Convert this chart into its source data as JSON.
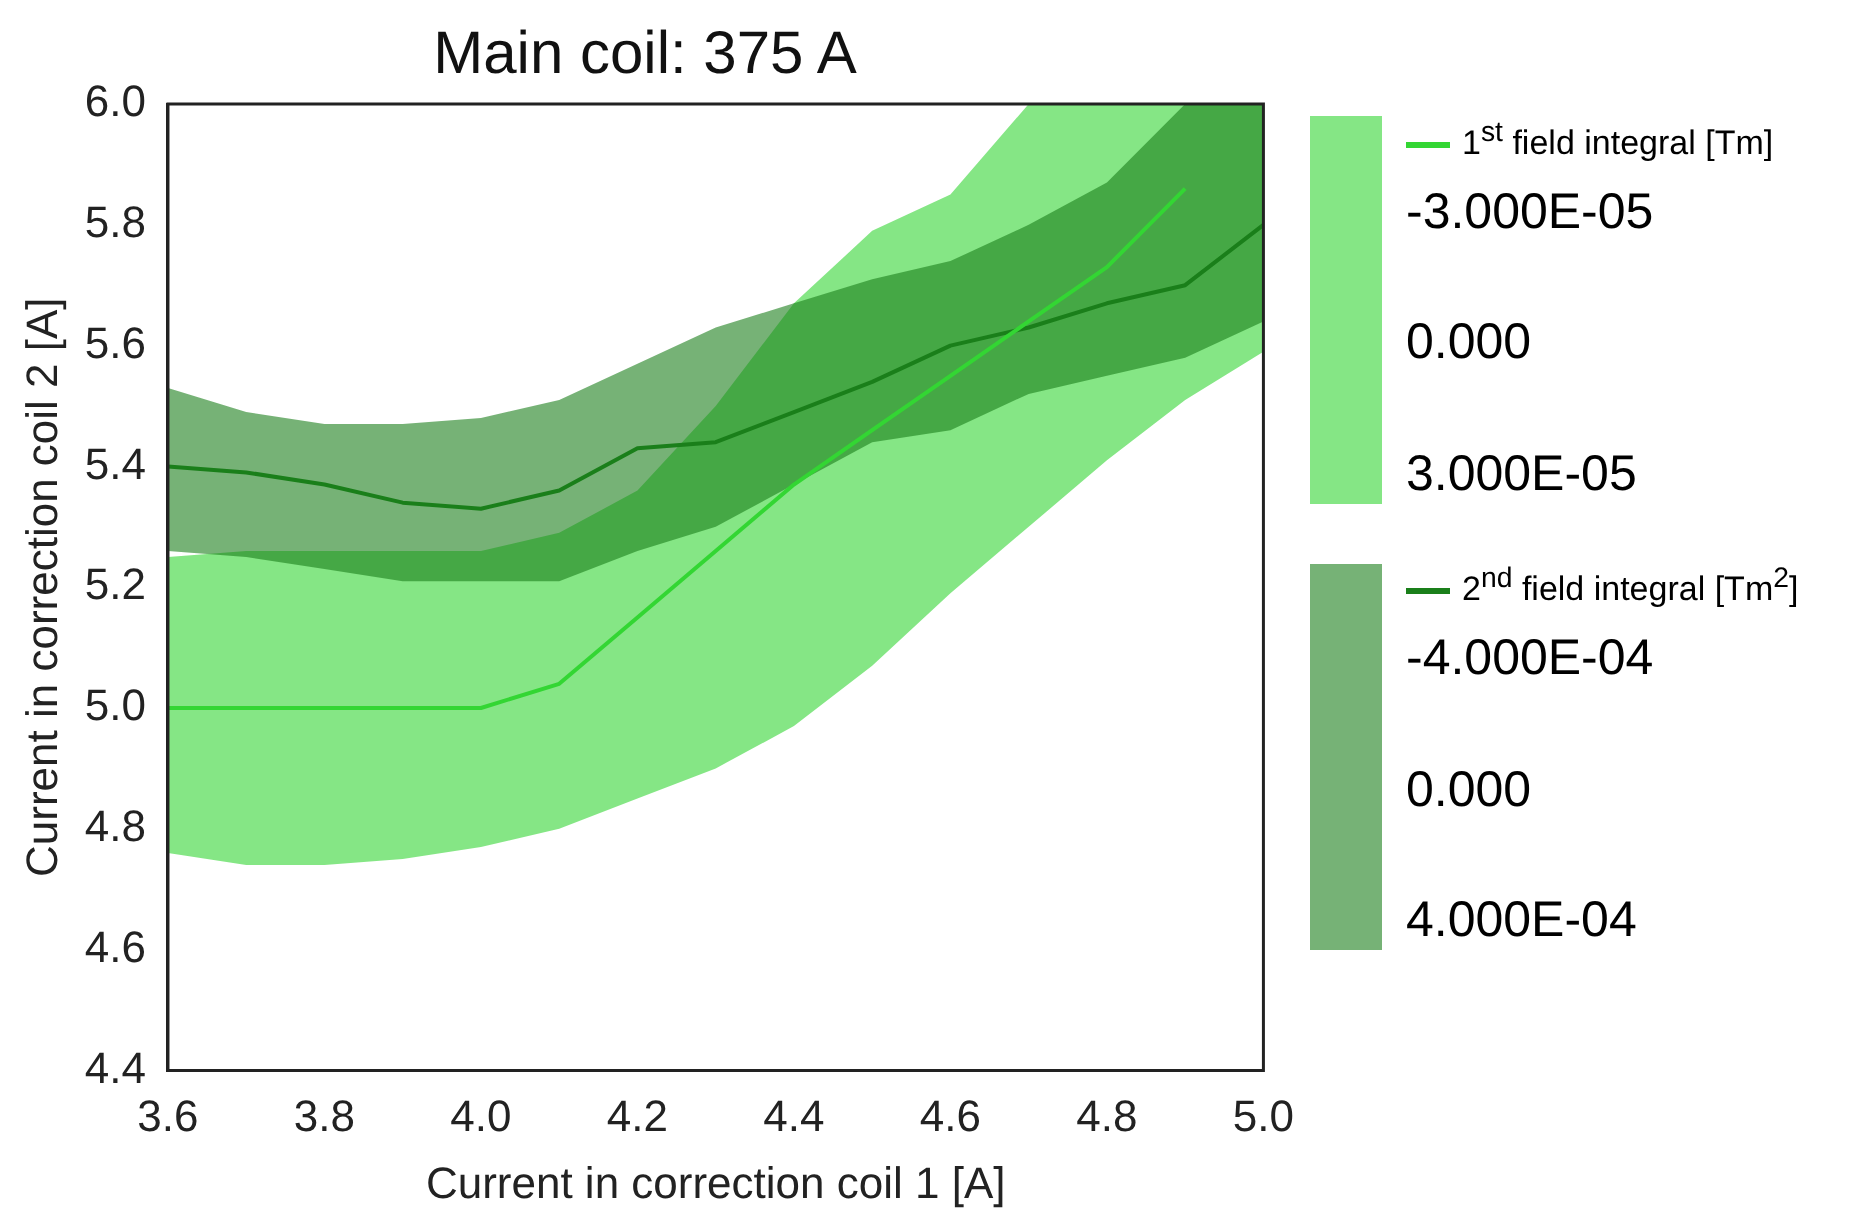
{
  "chart_data": {
    "type": "line",
    "title": "Main coil: 375 A",
    "xlabel": "Current in correction coil 1 [A]",
    "ylabel": "Current in correction coil 2 [A]",
    "x": [
      3.6,
      3.7,
      3.8,
      3.9,
      4.0,
      4.1,
      4.2,
      4.3,
      4.4,
      4.5,
      4.6,
      4.7,
      4.8,
      4.9,
      5.0
    ],
    "series": [
      {
        "name": "1$^{st}$ field integral [Tm]",
        "color": "#33d633",
        "values": [
          5.0,
          5.0,
          5.0,
          5.0,
          5.0,
          5.04,
          5.15,
          5.26,
          5.37,
          5.46,
          5.55,
          5.64,
          5.73,
          5.86,
          null
        ],
        "lower": [
          4.76,
          4.74,
          4.74,
          4.75,
          4.77,
          4.8,
          4.85,
          4.9,
          4.97,
          5.07,
          5.19,
          5.3,
          5.41,
          5.51,
          5.59
        ],
        "upper": [
          5.25,
          5.26,
          5.26,
          5.26,
          5.26,
          5.29,
          5.36,
          5.5,
          5.67,
          5.79,
          5.85,
          6.0,
          6.0,
          6.0,
          6.0
        ]
      },
      {
        "name": "2$^{nd}$ field integral [Tm$^{2}$]",
        "color": "#1a7f1a",
        "values": [
          5.4,
          5.39,
          5.37,
          5.34,
          5.33,
          5.36,
          5.43,
          5.44,
          5.49,
          5.54,
          5.6,
          5.63,
          5.67,
          5.7,
          5.8
        ],
        "lower": [
          5.26,
          5.25,
          5.23,
          5.21,
          5.21,
          5.21,
          5.26,
          5.3,
          5.37,
          5.44,
          5.46,
          5.52,
          5.55,
          5.58,
          5.64
        ],
        "upper": [
          5.53,
          5.49,
          5.47,
          5.47,
          5.48,
          5.51,
          5.57,
          5.63,
          5.67,
          5.71,
          5.74,
          5.8,
          5.87,
          6.0,
          6.0
        ]
      }
    ],
    "annotations": [
      "-3.000E-05",
      "0.000",
      "3.000E-05",
      "-4.000E-04",
      "0.000",
      "4.000E-04"
    ],
    "xlim": [
      3.6,
      5.0
    ],
    "xticks": [
      3.6,
      3.8,
      {
        "value": 4.0,
        "label": "4.0"
      },
      4.2,
      4.4,
      4.6,
      4.8,
      {
        "value": 5.0,
        "label": "5.0"
      }
    ],
    "ylim": [
      4.4,
      6.0
    ],
    "yticks": [
      4.4,
      4.6,
      4.8,
      {
        "value": 5.0,
        "label": "5.0"
      },
      5.2,
      5.4,
      5.6,
      5.8,
      {
        "value": 6.0,
        "label": "6.0"
      }
    ],
    "grid": false,
    "legend": "right",
    "marker": "none",
    "line_style": "solid"
  }
}
